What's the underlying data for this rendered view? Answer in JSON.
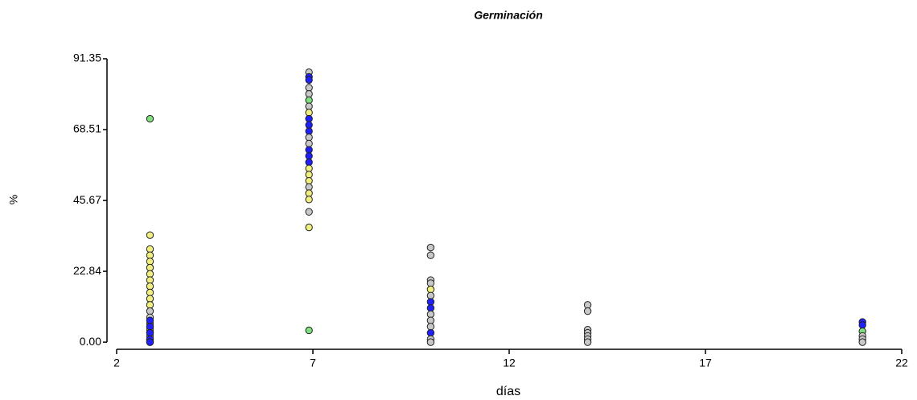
{
  "chart_data": {
    "type": "scatter",
    "title": "Germinación",
    "x_label": "días",
    "y_label": "%",
    "xlim": [
      2,
      22
    ],
    "xticks": [
      2,
      7,
      12,
      17,
      22
    ],
    "ylim": [
      -2.3,
      91.35
    ],
    "yticks": [
      {
        "value": 0,
        "label": "0.00"
      },
      22.84,
      45.67,
      68.51,
      91.35
    ],
    "series": [
      {
        "x": [
          2.85,
          2.85,
          2.85,
          2.85,
          2.85,
          2.85,
          2.85,
          2.85,
          2.85,
          2.85,
          2.85,
          2.85,
          2.85,
          2.85,
          2.85,
          2.85,
          2.85,
          2.85,
          2.85,
          2.85,
          2.85,
          2.85,
          2.85,
          2.85,
          2.85,
          2.85,
          2.85,
          6.9,
          6.9,
          6.9,
          6.9,
          6.9,
          6.9,
          6.9,
          6.9,
          6.9,
          6.9,
          6.9,
          6.9,
          6.9,
          6.9,
          6.9,
          6.9,
          6.9,
          6.9,
          6.9,
          6.9,
          6.9,
          6.9,
          6.9,
          6.9,
          6.9,
          10,
          10,
          10,
          10,
          10,
          10,
          10,
          10,
          10,
          10,
          10,
          10,
          10,
          10,
          14,
          14,
          14,
          14,
          14,
          14,
          14,
          21,
          21,
          21,
          21,
          21,
          21
        ],
        "values": [
          72,
          34.5,
          30,
          28,
          26,
          24,
          22,
          20,
          18,
          16,
          14,
          12,
          10,
          8,
          6,
          5,
          4,
          3,
          2,
          1,
          0.5,
          0,
          7,
          5,
          3,
          1,
          0,
          87,
          85.5,
          84.5,
          82,
          80,
          78,
          76,
          74,
          72,
          70,
          68,
          66,
          64,
          62,
          60,
          58,
          56,
          54,
          52,
          50,
          48,
          46,
          42,
          37,
          3.8,
          30.5,
          28,
          20,
          19,
          17,
          15,
          13,
          11,
          9,
          7,
          5,
          3,
          1,
          0,
          12,
          10,
          4,
          3,
          2,
          1,
          0,
          6.5,
          5.5,
          3.5,
          2,
          1,
          0
        ],
        "colors": [
          "#80e080",
          "#f0f080",
          "#f0f080",
          "#f0f080",
          "#f0f080",
          "#f0f080",
          "#f0f080",
          "#f0f080",
          "#f0f080",
          "#f0f080",
          "#f0f080",
          "#f0f080",
          "#c8c8c8",
          "#c8c8c8",
          "#c8c8c8",
          "#c8c8c8",
          "#c8c8c8",
          "#c8c8c8",
          "#c8c8c8",
          "#c8c8c8",
          "#c8c8c8",
          "#c8c8c8",
          "#2020ff",
          "#2020ff",
          "#2020ff",
          "#2020ff",
          "#2020ff",
          "#c8c8c8",
          "#2020ff",
          "#2020ff",
          "#c8c8c8",
          "#c8c8c8",
          "#80e080",
          "#c8c8c8",
          "#f0f080",
          "#2020ff",
          "#2020ff",
          "#2020ff",
          "#c8c8c8",
          "#c8c8c8",
          "#2020ff",
          "#2020ff",
          "#2020ff",
          "#f0f080",
          "#f0f080",
          "#f0f080",
          "#c8c8c8",
          "#f0f080",
          "#f0f080",
          "#c8c8c8",
          "#f0f080",
          "#80e080",
          "#c8c8c8",
          "#c8c8c8",
          "#c8c8c8",
          "#c8c8c8",
          "#f0f080",
          "#c8c8c8",
          "#2020ff",
          "#2020ff",
          "#c8c8c8",
          "#c8c8c8",
          "#c8c8c8",
          "#2020ff",
          "#c8c8c8",
          "#c8c8c8",
          "#c8c8c8",
          "#c8c8c8",
          "#c8c8c8",
          "#c8c8c8",
          "#c8c8c8",
          "#c8c8c8",
          "#c8c8c8",
          "#2020ff",
          "#2020ff",
          "#80e080",
          "#c8c8c8",
          "#c8c8c8",
          "#c8c8c8"
        ]
      }
    ]
  }
}
